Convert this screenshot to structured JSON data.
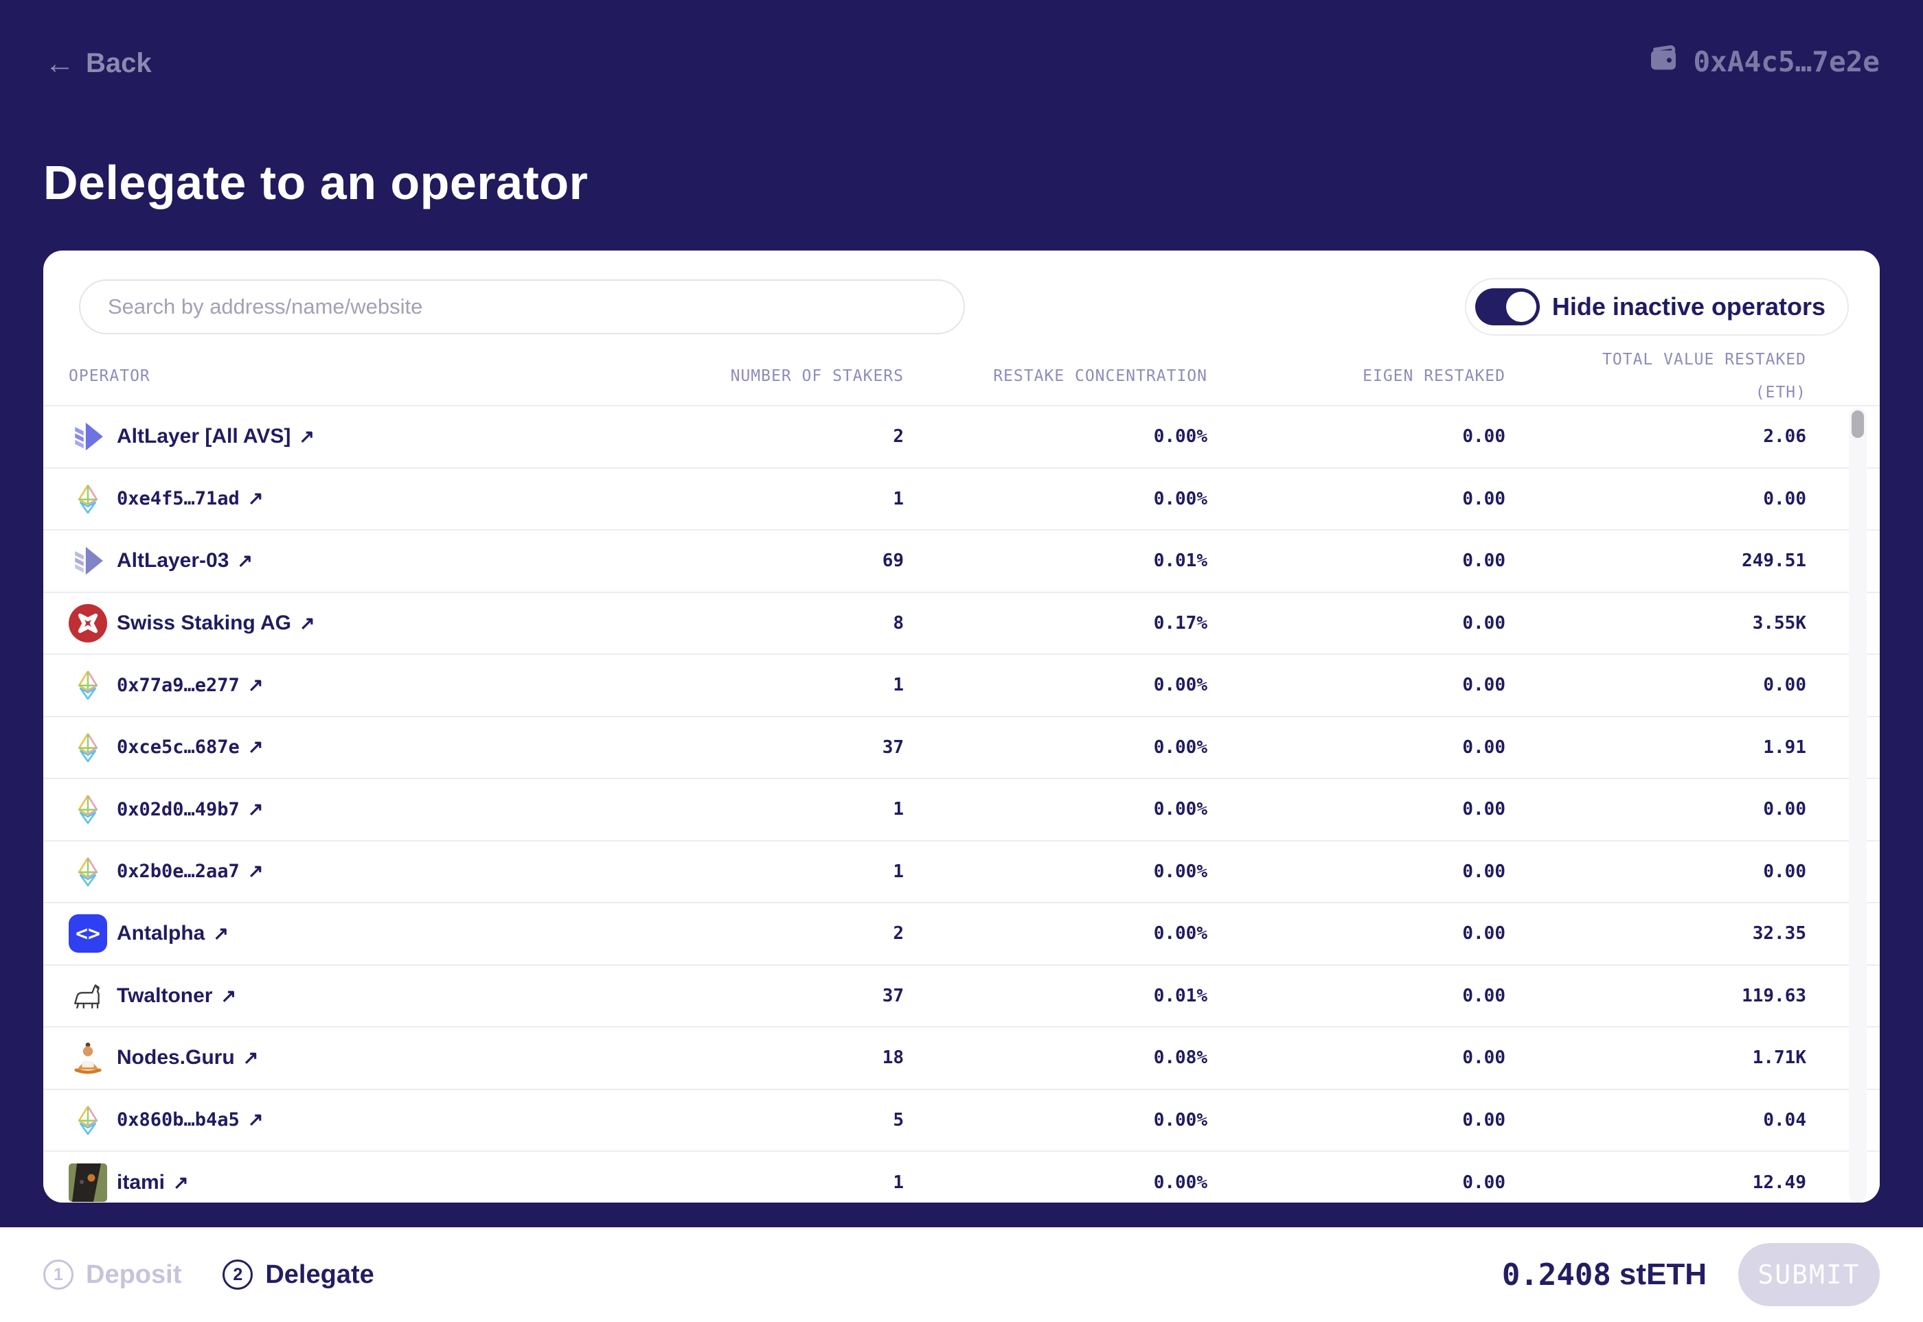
{
  "header": {
    "back_arrow": "←",
    "back_label": "Back",
    "wallet_address": "0xA4c5…7e2e",
    "title": "Delegate to an operator"
  },
  "card": {
    "search_placeholder": "Search by address/name/website",
    "toggle_label": "Hide inactive operators",
    "toggle_on": true,
    "external_link_glyph": "↗",
    "columns": [
      "OPERATOR",
      "NUMBER OF STAKERS",
      "RESTAKE CONCENTRATION",
      "EIGEN RESTAKED",
      "TOTAL VALUE RESTAKED\n(ETH)"
    ],
    "rows": [
      {
        "name": "AltLayer [All AVS]",
        "icon": "altlayer-icon",
        "stakers": "2",
        "restake_concentration": "0.00%",
        "eigen_restaked": "0.00",
        "total_value_restaked": "2.06"
      },
      {
        "name": "0xe4f5…71ad",
        "icon": "ethereum-icon",
        "stakers": "1",
        "restake_concentration": "0.00%",
        "eigen_restaked": "0.00",
        "total_value_restaked": "0.00"
      },
      {
        "name": "AltLayer-03",
        "icon": "altlayer-muted-icon",
        "stakers": "69",
        "restake_concentration": "0.01%",
        "eigen_restaked": "0.00",
        "total_value_restaked": "249.51"
      },
      {
        "name": "Swiss Staking AG",
        "icon": "swiss-staking-icon",
        "stakers": "8",
        "restake_concentration": "0.17%",
        "eigen_restaked": "0.00",
        "total_value_restaked": "3.55K"
      },
      {
        "name": "0x77a9…e277",
        "icon": "ethereum-icon",
        "stakers": "1",
        "restake_concentration": "0.00%",
        "eigen_restaked": "0.00",
        "total_value_restaked": "0.00"
      },
      {
        "name": "0xce5c…687e",
        "icon": "ethereum-icon",
        "stakers": "37",
        "restake_concentration": "0.00%",
        "eigen_restaked": "0.00",
        "total_value_restaked": "1.91"
      },
      {
        "name": "0x02d0…49b7",
        "icon": "ethereum-icon",
        "stakers": "1",
        "restake_concentration": "0.00%",
        "eigen_restaked": "0.00",
        "total_value_restaked": "0.00"
      },
      {
        "name": "0x2b0e…2aa7",
        "icon": "ethereum-icon",
        "stakers": "1",
        "restake_concentration": "0.00%",
        "eigen_restaked": "0.00",
        "total_value_restaked": "0.00"
      },
      {
        "name": "Antalpha",
        "icon": "antalpha-icon",
        "stakers": "2",
        "restake_concentration": "0.00%",
        "eigen_restaked": "0.00",
        "total_value_restaked": "32.35"
      },
      {
        "name": "Twaltoner",
        "icon": "dog-icon",
        "stakers": "37",
        "restake_concentration": "0.01%",
        "eigen_restaked": "0.00",
        "total_value_restaked": "119.63"
      },
      {
        "name": "Nodes.Guru",
        "icon": "guru-icon",
        "stakers": "18",
        "restake_concentration": "0.08%",
        "eigen_restaked": "0.00",
        "total_value_restaked": "1.71K"
      },
      {
        "name": "0x860b…b4a5",
        "icon": "ethereum-icon",
        "stakers": "5",
        "restake_concentration": "0.00%",
        "eigen_restaked": "0.00",
        "total_value_restaked": "0.04"
      },
      {
        "name": "itami",
        "icon": "itami-photo-icon",
        "stakers": "1",
        "restake_concentration": "0.00%",
        "eigen_restaked": "0.00",
        "total_value_restaked": "12.49"
      }
    ]
  },
  "footer": {
    "steps": [
      {
        "number": "1",
        "label": "Deposit",
        "active": false
      },
      {
        "number": "2",
        "label": "Delegate",
        "active": true
      }
    ],
    "amount_value": "0.2408",
    "amount_unit": "stETH",
    "submit_label": "SUBMIT"
  },
  "colors": {
    "background": "#211a5c",
    "accent_navy": "#231d63",
    "swiss_red": "#bf2f33",
    "antalpha_blue": "#2f3ff2",
    "submit_disabled": "#d8d6e7"
  }
}
